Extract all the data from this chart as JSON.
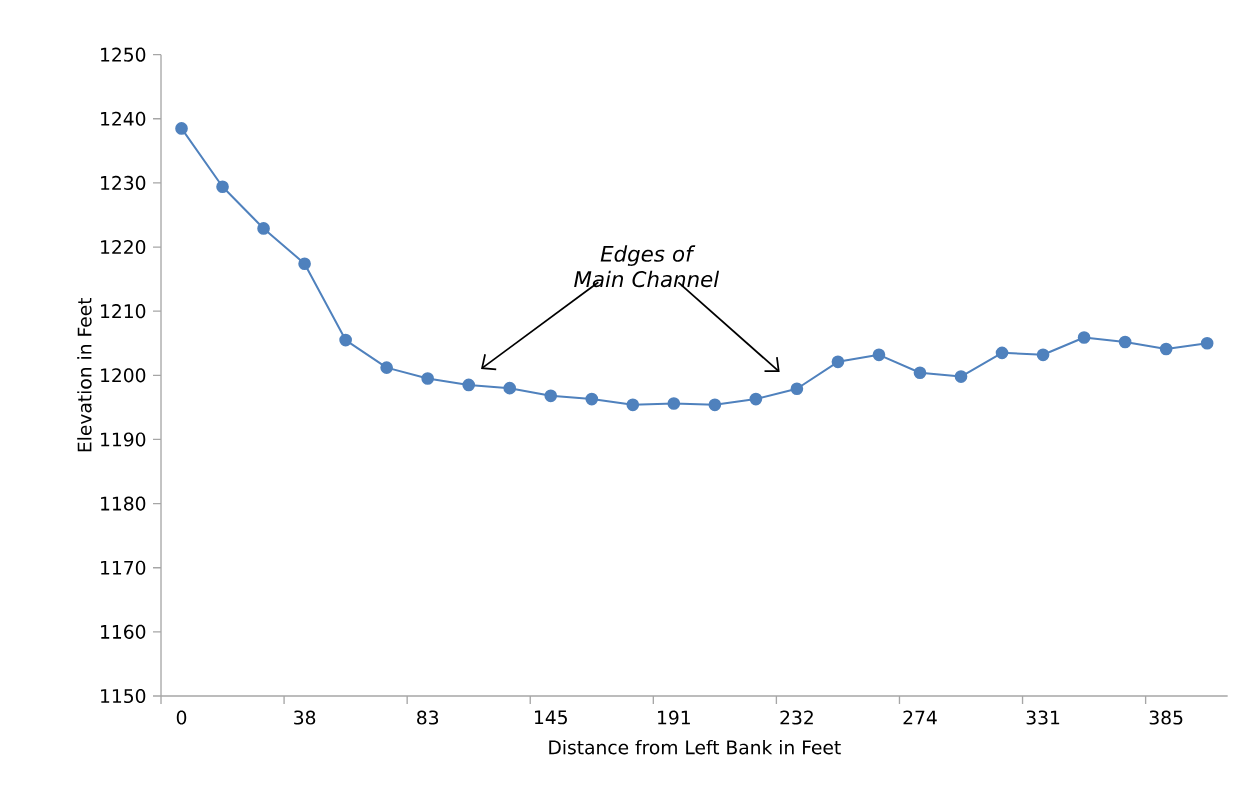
{
  "chart_data": {
    "type": "line",
    "xlabel": "Distance from Left Bank in Feet",
    "ylabel": "Elevation in Feet",
    "categories": [
      "0",
      null,
      null,
      "38",
      null,
      null,
      "83",
      null,
      null,
      "145",
      null,
      null,
      "191",
      null,
      null,
      "232",
      null,
      null,
      "274",
      null,
      null,
      "331",
      null,
      null,
      "385",
      null
    ],
    "values": [
      1238.5,
      1229.4,
      1222.9,
      1217.4,
      1205.5,
      1201.2,
      1199.5,
      1198.5,
      1198.0,
      1196.8,
      1196.3,
      1195.4,
      1195.6,
      1195.4,
      1196.3,
      1197.9,
      1202.1,
      1203.2,
      1200.4,
      1199.8,
      1203.5,
      1203.2,
      1205.9,
      1205.2,
      1204.1,
      1205.0
    ],
    "color": "#4f81bd",
    "marker": "circle",
    "line_style": "solid",
    "ylim": [
      1150,
      1250
    ],
    "yticks": [
      1150,
      1160,
      1170,
      1180,
      1190,
      1200,
      1210,
      1220,
      1230,
      1240,
      1250
    ],
    "annotations": [
      "Edges of Main Channel"
    ]
  }
}
